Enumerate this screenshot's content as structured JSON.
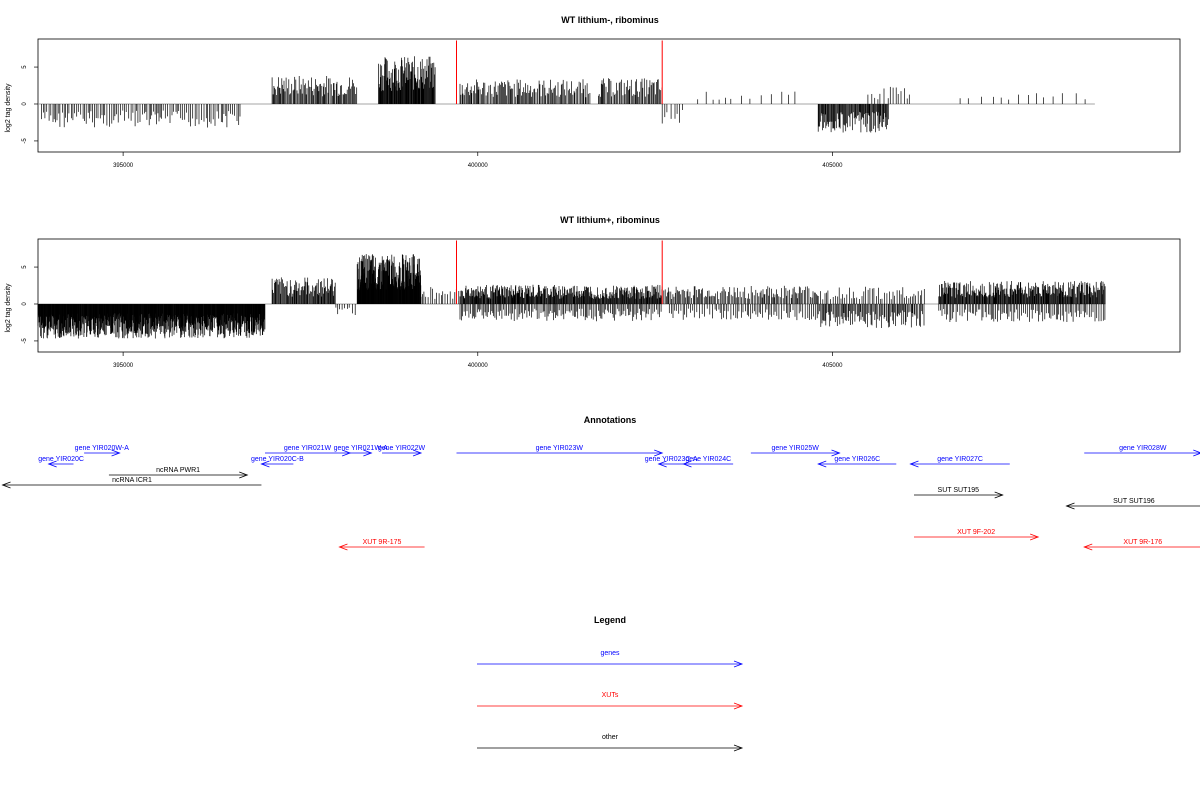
{
  "chart_data": [
    {
      "type": "bar",
      "title": "WT lithium-, ribominus",
      "ylabel": "log2 tag density",
      "xlim": [
        393800,
        409900
      ],
      "ylim": [
        -6.5,
        8.8
      ],
      "xticks": [
        395000,
        400000,
        405000
      ],
      "xtick_labels": [
        "395000",
        "400000",
        "405000"
      ],
      "yticks": [
        -5,
        0,
        5
      ],
      "ytick_labels": [
        "-5",
        "0",
        "5"
      ],
      "grid": false,
      "baseline": {
        "from": 393800,
        "to": 408700
      },
      "markers": {
        "color": "#ff0000",
        "x": [
          399700,
          402600
        ],
        "label": ""
      },
      "segments": [
        {
          "from": 393850,
          "to": 396650,
          "value": -2.5,
          "density": 0.55
        },
        {
          "from": 397100,
          "to": 398300,
          "value": 3.0,
          "density": 1.0
        },
        {
          "from": 398600,
          "to": 399400,
          "value": 5.0,
          "density": 1.8
        },
        {
          "from": 399750,
          "to": 401600,
          "value": 2.6,
          "density": 0.9
        },
        {
          "from": 401700,
          "to": 402600,
          "value": 2.7,
          "density": 0.9
        },
        {
          "from": 402600,
          "to": 402900,
          "value": -2.2,
          "density": 0.3
        },
        {
          "from": 403100,
          "to": 404500,
          "value": 1.3,
          "density": 0.12
        },
        {
          "from": 404800,
          "to": 405800,
          "value": -3.0,
          "density": 1.3
        },
        {
          "from": 405500,
          "to": 406100,
          "value": 1.8,
          "density": 0.3
        },
        {
          "from": 406800,
          "to": 408700,
          "value": 1.3,
          "density": 0.1
        }
      ]
    },
    {
      "type": "bar",
      "title": "WT lithium+, ribominus",
      "ylabel": "log2 tag density",
      "xlim": [
        393800,
        409900
      ],
      "ylim": [
        -6.5,
        8.8
      ],
      "xticks": [
        395000,
        400000,
        405000
      ],
      "xtick_labels": [
        "395000",
        "400000",
        "405000"
      ],
      "yticks": [
        -5,
        0,
        5
      ],
      "ytick_labels": [
        "-5",
        "0",
        "5"
      ],
      "grid": false,
      "baseline": {
        "from": 393800,
        "to": 408850
      },
      "markers": {
        "color": "#ff0000",
        "x": [
          399700,
          402600
        ],
        "label": ""
      },
      "segments": [
        {
          "from": 393800,
          "to": 397000,
          "value": -3.6,
          "density": 3.0
        },
        {
          "from": 397100,
          "to": 398000,
          "value": 2.8,
          "density": 1.3
        },
        {
          "from": 398000,
          "to": 398300,
          "value": -1.2,
          "density": 0.4
        },
        {
          "from": 398300,
          "to": 399200,
          "value": 5.2,
          "density": 3.2
        },
        {
          "from": 399200,
          "to": 399750,
          "value": 1.8,
          "density": 0.5
        },
        {
          "from": 399750,
          "to": 402600,
          "value": 2.0,
          "density": 1.6
        },
        {
          "from": 399750,
          "to": 402600,
          "value": -1.8,
          "density": 0.7
        },
        {
          "from": 402600,
          "to": 404800,
          "value": 1.9,
          "density": 0.8
        },
        {
          "from": 402700,
          "to": 404800,
          "value": -1.7,
          "density": 0.5
        },
        {
          "from": 404800,
          "to": 406300,
          "value": -2.5,
          "density": 0.9
        },
        {
          "from": 404800,
          "to": 406300,
          "value": 1.8,
          "density": 0.5
        },
        {
          "from": 406500,
          "to": 408850,
          "value": 2.4,
          "density": 1.5
        },
        {
          "from": 406500,
          "to": 408850,
          "value": -1.9,
          "density": 0.6
        }
      ]
    }
  ],
  "annotations": {
    "title": "Annotations",
    "colors": {
      "gene": "#0000ff",
      "xut": "#ff0000",
      "other": "#000000"
    },
    "features": [
      {
        "label": "gene YIR020W-A",
        "type": "gene",
        "start": 394450,
        "end": 394950,
        "strand": "+",
        "row": 0
      },
      {
        "label": "gene YIR020C",
        "type": "gene",
        "start": 394300,
        "end": 393950,
        "strand": "-",
        "row": 1
      },
      {
        "label": "ncRNA PWR1",
        "type": "other",
        "start": 394800,
        "end": 396750,
        "strand": "+",
        "row": 2
      },
      {
        "label": "ncRNA ICR1",
        "type": "other",
        "start": 396950,
        "end": 393300,
        "strand": "-",
        "row": 3
      },
      {
        "label": "gene YIR021W",
        "type": "gene",
        "start": 397000,
        "end": 398200,
        "strand": "+",
        "row": 0
      },
      {
        "label": "gene YIR020C-B",
        "type": "gene",
        "start": 397400,
        "end": 396950,
        "strand": "-",
        "row": 1
      },
      {
        "label": "gene YIR021W-A",
        "type": "gene",
        "start": 398200,
        "end": 398500,
        "strand": "+",
        "row": 0
      },
      {
        "label": "gene YIR022W",
        "type": "gene",
        "start": 398650,
        "end": 399200,
        "strand": "+",
        "row": 0
      },
      {
        "label": "XUT 9R-175",
        "type": "xut",
        "start": 399250,
        "end": 398050,
        "strand": "-",
        "row": 4
      },
      {
        "label": "gene YIR023W",
        "type": "gene",
        "start": 399700,
        "end": 402600,
        "strand": "+",
        "row": 0
      },
      {
        "label": "gene YIR023C-A",
        "type": "gene",
        "start": 402900,
        "end": 402550,
        "strand": "-",
        "row": 1
      },
      {
        "label": "gene YIR024C",
        "type": "gene",
        "start": 403600,
        "end": 402900,
        "strand": "-",
        "row": 1
      },
      {
        "label": "gene YIR025W",
        "type": "gene",
        "start": 403850,
        "end": 405100,
        "strand": "+",
        "row": 0
      },
      {
        "label": "gene YIR026C",
        "type": "gene",
        "start": 405900,
        "end": 404800,
        "strand": "-",
        "row": 1
      },
      {
        "label": "gene YIR027C",
        "type": "gene",
        "start": 407500,
        "end": 406100,
        "strand": "-",
        "row": 1
      },
      {
        "label": "SUT SUT195",
        "type": "other",
        "start": 406150,
        "end": 407400,
        "strand": "+",
        "row": 5
      },
      {
        "label": "XUT 9F-202",
        "type": "xut",
        "start": 406150,
        "end": 407900,
        "strand": "+",
        "row": 6
      },
      {
        "label": "gene YIR028W",
        "type": "gene",
        "start": 408550,
        "end": 410200,
        "strand": "+",
        "row": 0
      },
      {
        "label": "SUT SUT196",
        "type": "other",
        "start": 410200,
        "end": 408300,
        "strand": "-",
        "row": 7
      },
      {
        "label": "XUT 9R-176",
        "type": "xut",
        "start": 410200,
        "end": 408550,
        "strand": "-",
        "row": 8
      }
    ]
  },
  "legend": {
    "title": "Legend",
    "items": [
      {
        "label": "genes",
        "color": "#0000ff"
      },
      {
        "label": "XUTs",
        "color": "#ff0000"
      },
      {
        "label": "other",
        "color": "#000000"
      }
    ]
  }
}
